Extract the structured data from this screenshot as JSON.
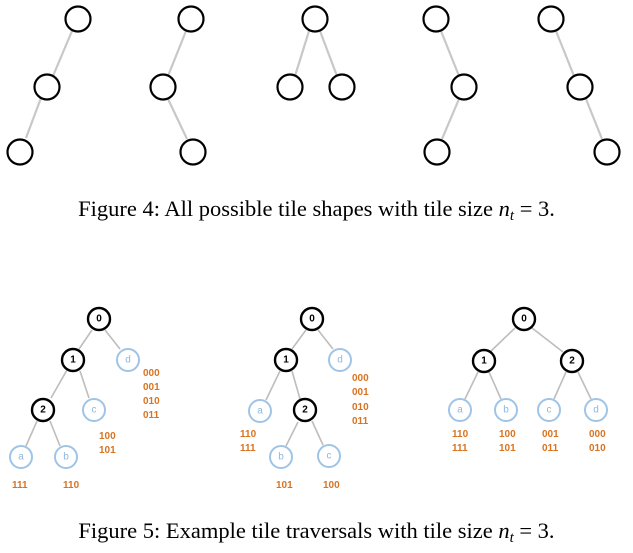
{
  "figure4": {
    "caption_prefix": "Figure 4: All possible tile shapes with tile size ",
    "symbol": "n",
    "subscript": "t",
    "caption_suffix": " = 3."
  },
  "figure5": {
    "caption_prefix": "Figure 5: Example tile traversals with tile size ",
    "symbol": "n",
    "subscript": "t",
    "caption_suffix": " = 3.",
    "traversal1": {
      "keys": [
        "0",
        "1",
        "2"
      ],
      "leaves": [
        "a",
        "b",
        "c",
        "d"
      ],
      "codes": {
        "d": [
          "000",
          "001",
          "010",
          "011"
        ],
        "c": [
          "100",
          "101"
        ],
        "a": [
          "111"
        ],
        "b": [
          "110"
        ]
      }
    },
    "traversal2": {
      "keys": [
        "0",
        "1",
        "2"
      ],
      "leaves": [
        "a",
        "b",
        "c",
        "d"
      ],
      "codes": {
        "d": [
          "000",
          "001",
          "010",
          "011"
        ],
        "a": [
          "110",
          "111"
        ],
        "b": [
          "101"
        ],
        "c": [
          "100"
        ]
      }
    },
    "traversal3": {
      "keys": [
        "0",
        "1",
        "2"
      ],
      "leaves": [
        "a",
        "b",
        "c",
        "d"
      ],
      "codes": {
        "a": [
          "110",
          "111"
        ],
        "b": [
          "100",
          "101"
        ],
        "c": [
          "001",
          "011"
        ],
        "d": [
          "000",
          "010"
        ]
      }
    }
  }
}
